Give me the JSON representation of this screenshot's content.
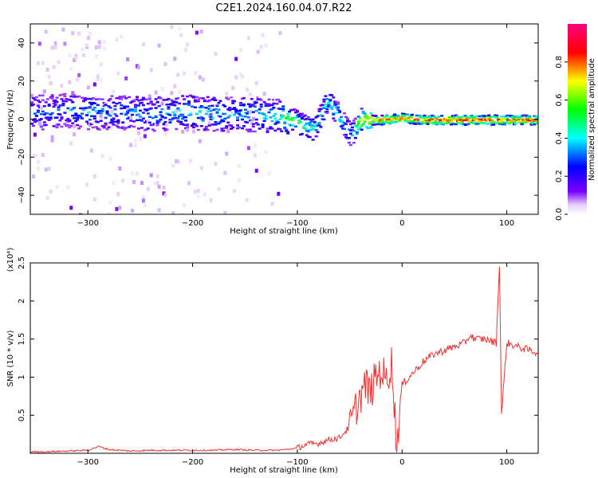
{
  "title": "C2E1.2024.160.04.07.R22",
  "chart_data": [
    {
      "type": "heatmap",
      "xlabel": "Height of straight line (km)",
      "ylabel": "Frequency (Hz)",
      "xlim": [
        -355,
        130
      ],
      "ylim": [
        -50,
        50
      ],
      "xticks": [
        -300,
        -200,
        -100,
        0,
        100
      ],
      "yticks": [
        -40,
        -20,
        0,
        20,
        40
      ],
      "colorbar": {
        "label": "Normalized spectral amplitude",
        "range": [
          0.0,
          1.0
        ],
        "ticks": [
          "0.0",
          "0.2",
          "0.4",
          "0.6",
          "0.8"
        ],
        "colors": [
          "#ffffff",
          "#e6d0f7",
          "#7a00ff",
          "#0000ff",
          "#00ffff",
          "#00ff00",
          "#ffff00",
          "#ff0000",
          "#ff0080"
        ]
      },
      "ridge": [
        {
          "x": -340,
          "y": 4,
          "a": 0.28
        },
        {
          "x": -320,
          "y": 5,
          "a": 0.3
        },
        {
          "x": -300,
          "y": 4,
          "a": 0.35
        },
        {
          "x": -280,
          "y": 4,
          "a": 0.3
        },
        {
          "x": -260,
          "y": 4,
          "a": 0.32
        },
        {
          "x": -240,
          "y": 3,
          "a": 0.33
        },
        {
          "x": -220,
          "y": 4,
          "a": 0.35
        },
        {
          "x": -200,
          "y": 4,
          "a": 0.4
        },
        {
          "x": -180,
          "y": 3,
          "a": 0.38
        },
        {
          "x": -160,
          "y": 3,
          "a": 0.33
        },
        {
          "x": -140,
          "y": 3,
          "a": 0.36
        },
        {
          "x": -120,
          "y": 2,
          "a": 0.42
        },
        {
          "x": -105,
          "y": 0,
          "a": 0.55
        },
        {
          "x": -95,
          "y": -3,
          "a": 0.5
        },
        {
          "x": -85,
          "y": -5,
          "a": 0.45
        },
        {
          "x": -72,
          "y": 10,
          "a": 0.42
        },
        {
          "x": -62,
          "y": 3,
          "a": 0.45
        },
        {
          "x": -50,
          "y": -8,
          "a": 0.3
        },
        {
          "x": -40,
          "y": 0,
          "a": 0.7
        },
        {
          "x": -20,
          "y": 0,
          "a": 0.8
        },
        {
          "x": 0,
          "y": 1,
          "a": 0.82
        },
        {
          "x": 20,
          "y": 0,
          "a": 0.85
        },
        {
          "x": 40,
          "y": 0,
          "a": 0.88
        },
        {
          "x": 60,
          "y": 0,
          "a": 0.9
        },
        {
          "x": 80,
          "y": 0,
          "a": 0.9
        },
        {
          "x": 100,
          "y": 0,
          "a": 0.88
        },
        {
          "x": 125,
          "y": 0,
          "a": 0.85
        }
      ]
    },
    {
      "type": "line",
      "xlabel": "Height of straight line (km)",
      "ylabel": "SNR (10 * v/v)",
      "yscale_label": "(x10⁴)",
      "xlim": [
        -355,
        130
      ],
      "ylim": [
        0,
        2.5
      ],
      "xticks": [
        -300,
        -200,
        -100,
        0,
        100
      ],
      "yticks": [
        0.5,
        1.0,
        1.5,
        2.0,
        2.5
      ],
      "line_color": "#ee3333",
      "series": [
        {
          "x": [
            -355,
            -340,
            -320,
            -300,
            -290,
            -280,
            -260,
            -240,
            -220,
            -200,
            -180,
            -160,
            -140,
            -120,
            -110,
            -100,
            -90,
            -80,
            -70,
            -60,
            -50,
            -45,
            -40,
            -35,
            -30,
            -25,
            -20,
            -15,
            -10,
            -5,
            0,
            10,
            20,
            30,
            40,
            50,
            60,
            65,
            70,
            80,
            90,
            93,
            95,
            100,
            110,
            120,
            130
          ],
          "y": [
            0.02,
            0.02,
            0.03,
            0.04,
            0.09,
            0.05,
            0.03,
            0.04,
            0.04,
            0.04,
            0.04,
            0.05,
            0.04,
            0.04,
            0.05,
            0.07,
            0.12,
            0.13,
            0.18,
            0.2,
            0.35,
            0.55,
            0.75,
            0.9,
            0.8,
            1.0,
            1.1,
            0.95,
            1.2,
            0.1,
            0.9,
            1.05,
            1.2,
            1.3,
            1.35,
            1.4,
            1.45,
            1.55,
            1.5,
            1.5,
            1.45,
            2.5,
            0.5,
            1.45,
            1.4,
            1.36,
            1.32
          ]
        }
      ]
    }
  ]
}
